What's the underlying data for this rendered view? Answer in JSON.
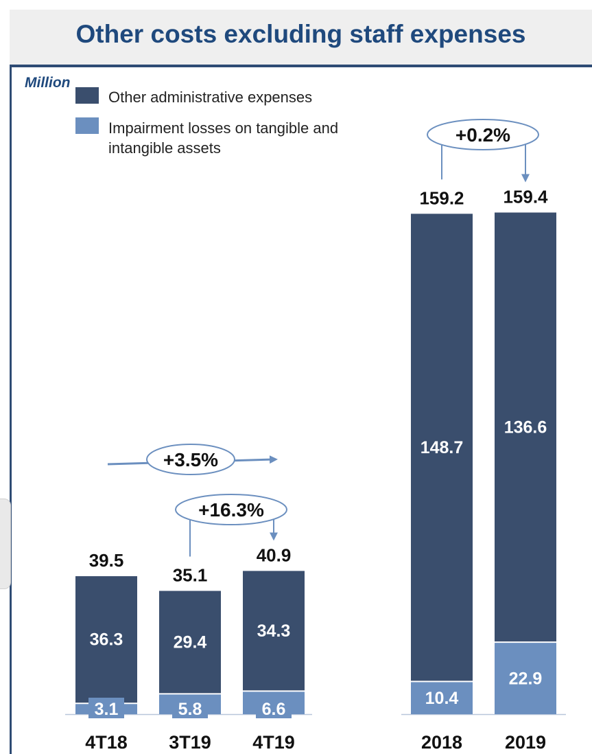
{
  "header": {
    "title": "Other costs excluding staff expenses"
  },
  "colors": {
    "admin": "#3a4e6d",
    "impairment": "#6b8fbf",
    "accent": "#1f497d",
    "arrow": "#6b8fbf"
  },
  "chart_data": {
    "type": "bar",
    "stacked": true,
    "unit_label": "Million",
    "legend": {
      "placement": "top-left",
      "entries": [
        "Other administrative expenses",
        "Impairment losses on tangible and intangible assets"
      ]
    },
    "categories": [
      "4T18",
      "3T19",
      "4T19",
      "2018",
      "2019"
    ],
    "series": [
      {
        "name": "Other administrative expenses",
        "values": [
          36.3,
          29.4,
          34.3,
          148.7,
          136.6
        ]
      },
      {
        "name": "Impairment losses on tangible and intangible assets",
        "values": [
          3.1,
          5.8,
          6.6,
          10.4,
          22.9
        ]
      }
    ],
    "totals": [
      39.5,
      35.1,
      40.9,
      159.2,
      159.4
    ],
    "value_labels": {
      "series": [
        [
          "36.3",
          "29.4",
          "34.3",
          "148.7",
          "136.6"
        ],
        [
          "3.1",
          "5.8",
          "6.6",
          "10.4",
          "22.9"
        ]
      ],
      "totals": [
        "39.5",
        "35.1",
        "40.9",
        "159.2",
        "159.4"
      ]
    },
    "annotations": [
      {
        "text": "+3.5%",
        "from": "4T18",
        "to": "4T19"
      },
      {
        "text": "+16.3%",
        "from": "3T19",
        "to": "4T19"
      },
      {
        "text": "+0.2%",
        "from": "2018",
        "to": "2019"
      }
    ]
  }
}
